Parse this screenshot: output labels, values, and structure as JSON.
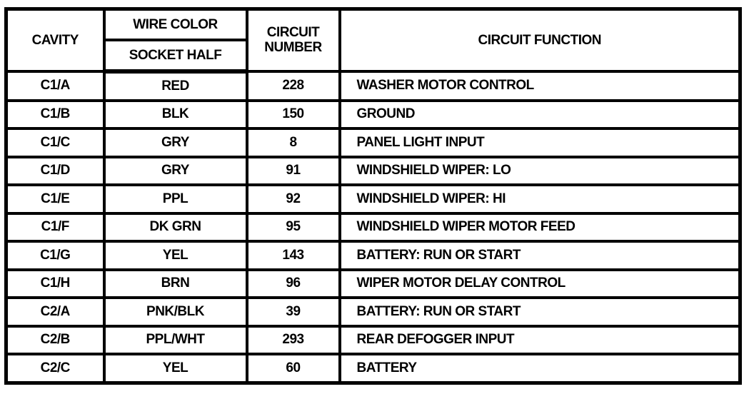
{
  "headers": {
    "cavity": "CAVITY",
    "wire_color": "WIRE COLOR",
    "socket_half": "SOCKET HALF",
    "circuit_number": "CIRCUIT NUMBER",
    "circuit_function": "CIRCUIT FUNCTION"
  },
  "rows": [
    {
      "cavity": "C1/A",
      "wire": "RED",
      "number": "228",
      "function": "WASHER MOTOR CONTROL"
    },
    {
      "cavity": "C1/B",
      "wire": "BLK",
      "number": "150",
      "function": "GROUND"
    },
    {
      "cavity": "C1/C",
      "wire": "GRY",
      "number": "8",
      "function": "PANEL LIGHT INPUT"
    },
    {
      "cavity": "C1/D",
      "wire": "GRY",
      "number": "91",
      "function": "WINDSHIELD WIPER: LO"
    },
    {
      "cavity": "C1/E",
      "wire": "PPL",
      "number": "92",
      "function": "WINDSHIELD WIPER: HI"
    },
    {
      "cavity": "C1/F",
      "wire": "DK GRN",
      "number": "95",
      "function": "WINDSHIELD WIPER MOTOR FEED"
    },
    {
      "cavity": "C1/G",
      "wire": "YEL",
      "number": "143",
      "function": "BATTERY: RUN OR START"
    },
    {
      "cavity": "C1/H",
      "wire": "BRN",
      "number": "96",
      "function": "WIPER MOTOR DELAY CONTROL"
    },
    {
      "cavity": "C2/A",
      "wire": "PNK/BLK",
      "number": "39",
      "function": "BATTERY: RUN OR START"
    },
    {
      "cavity": "C2/B",
      "wire": "PPL/WHT",
      "number": "293",
      "function": "REAR DEFOGGER INPUT"
    },
    {
      "cavity": "C2/C",
      "wire": "YEL",
      "number": "60",
      "function": "BATTERY"
    }
  ]
}
